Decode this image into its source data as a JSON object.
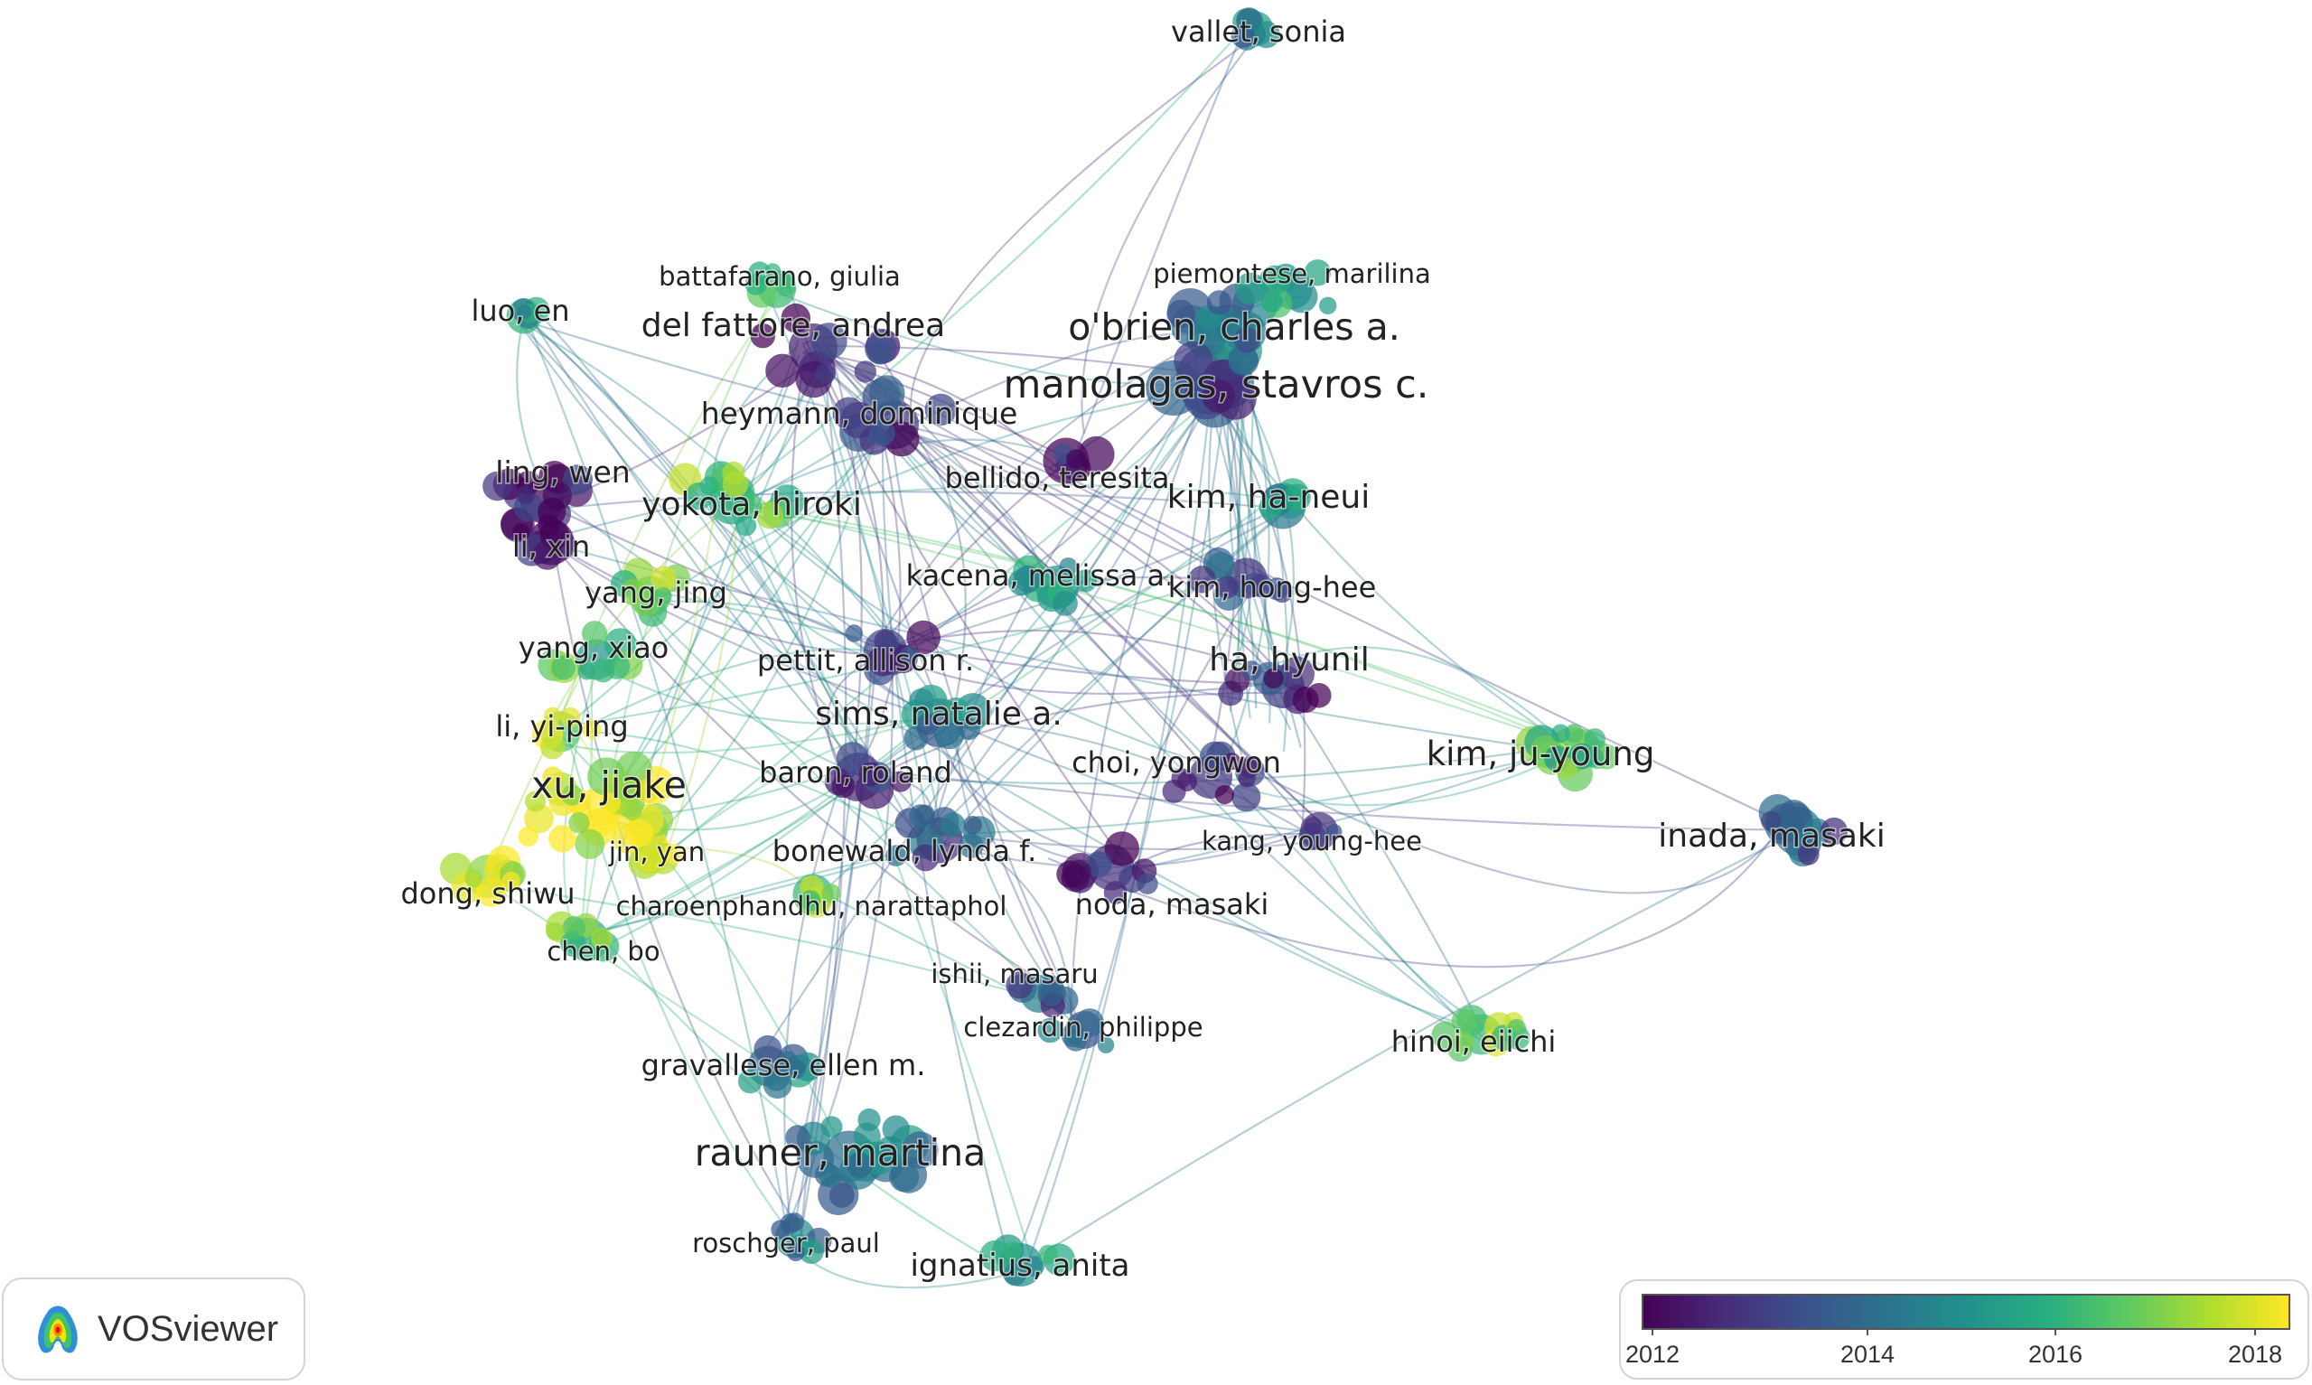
{
  "app": {
    "name": "VOSviewer"
  },
  "legend": {
    "ticks": [
      {
        "label": "2012"
      },
      {
        "label": "2014"
      },
      {
        "label": "2016"
      },
      {
        "label": "2018"
      }
    ],
    "colors": [
      "#440154",
      "#472d7b",
      "#3b528b",
      "#2c728e",
      "#21918c",
      "#28ae80",
      "#5ec962",
      "#addc30",
      "#fde725"
    ]
  },
  "network": {
    "labels": [
      {
        "id": "vallet-sonia",
        "text": "vallet, sonia",
        "year": 2013.2
      },
      {
        "id": "battafarano-giulia",
        "text": "battafarano, giulia",
        "year": 2017.5
      },
      {
        "id": "piemontese-marilina",
        "text": "piemontese, marilina",
        "year": 2015.5
      },
      {
        "id": "luo-en",
        "text": "luo, en",
        "year": 2015
      },
      {
        "id": "del-fattore-andrea",
        "text": "del fattore, andrea",
        "year": 2012.6
      },
      {
        "id": "obrien-charles",
        "text": "o'brien, charles a.",
        "year": 2014.2
      },
      {
        "id": "manolagas-stavros",
        "text": "manolagas, stavros c.",
        "year": 2013.3
      },
      {
        "id": "heymann-dominique",
        "text": "heymann, dominique",
        "year": 2012.8
      },
      {
        "id": "ling-wen",
        "text": "ling, wen",
        "year": 2012.3
      },
      {
        "id": "bellido-teresita",
        "text": "bellido, teresita",
        "year": 2012.4
      },
      {
        "id": "yokota-hiroki",
        "text": "yokota, hiroki",
        "year": 2016.5
      },
      {
        "id": "kim-ha-neui",
        "text": "kim, ha-neui",
        "year": 2014.8
      },
      {
        "id": "li-xin",
        "text": "li, xin",
        "year": 2012.4
      },
      {
        "id": "kacena-melissa",
        "text": "kacena, melissa a.",
        "year": 2015
      },
      {
        "id": "kim-hong-hee",
        "text": "kim, hong-hee",
        "year": 2013.4
      },
      {
        "id": "yang-jing",
        "text": "yang, jing",
        "year": 2016.8
      },
      {
        "id": "yang-xiao",
        "text": "yang, xiao",
        "year": 2016.2
      },
      {
        "id": "pettit-allison",
        "text": "pettit, allison r.",
        "year": 2012.8
      },
      {
        "id": "ha-hyunil",
        "text": "ha, hyunil",
        "year": 2012.6
      },
      {
        "id": "sims-natalie",
        "text": "sims, natalie a.",
        "year": 2014.5
      },
      {
        "id": "li-yi-ping",
        "text": "li, yi-ping",
        "year": 2017.5
      },
      {
        "id": "kim-ju-young",
        "text": "kim, ju-young",
        "year": 2016.3
      },
      {
        "id": "baron-roland",
        "text": "baron, roland",
        "year": 2013.2
      },
      {
        "id": "choi-yongwon",
        "text": "choi, yongwon",
        "year": 2012.5
      },
      {
        "id": "xu-jiake",
        "text": "xu, jiake",
        "year": 2017.8
      },
      {
        "id": "inada-masaki",
        "text": "inada, masaki",
        "year": 2013
      },
      {
        "id": "jin-yan",
        "text": "jin, yan",
        "year": 2017.6
      },
      {
        "id": "kang-young-hee",
        "text": "kang, young-hee",
        "year": 2013.2
      },
      {
        "id": "bonewald-lynda",
        "text": "bonewald, lynda f.",
        "year": 2013.5
      },
      {
        "id": "dong-shiwu",
        "text": "dong, shiwu",
        "year": 2018
      },
      {
        "id": "charoenphandhu-narattaphol",
        "text": "charoenphandhu, narattaphol",
        "year": 2017
      },
      {
        "id": "noda-masaki",
        "text": "noda, masaki",
        "year": 2012.4
      },
      {
        "id": "chen-bo",
        "text": "chen, bo",
        "year": 2016.5
      },
      {
        "id": "ishii-masaru",
        "text": "ishii, masaru",
        "year": 2012.7
      },
      {
        "id": "clezardin-philippe",
        "text": "clezardin, philippe",
        "year": 2013.8
      },
      {
        "id": "hinoi-eiichi",
        "text": "hinoi, eiichi",
        "year": 2017
      },
      {
        "id": "gravallese-ellen",
        "text": "gravallese, ellen m.",
        "year": 2014.8
      },
      {
        "id": "rauner-martina",
        "text": "rauner, martina",
        "year": 2014.6
      },
      {
        "id": "roschger-paul",
        "text": "roschger, paul",
        "year": 2014.5
      },
      {
        "id": "ignatius-anita",
        "text": "ignatius, anita",
        "year": 2015.2
      }
    ]
  }
}
